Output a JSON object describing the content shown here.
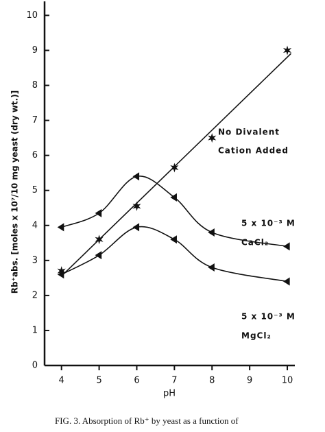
{
  "chart_data": {
    "type": "line",
    "x_label": "pH",
    "y_label": "Rb⁺abs. [moles x 10⁷/10 mg yeast (dry wt.)]",
    "caption": "FIG. 3.  Absorption of Rb⁺ by yeast as a function of",
    "annotations": [
      "No Divalent",
      "Cation Added",
      "5 x 10⁻³ M",
      "CaCl₂",
      "5 x 10⁻³ M",
      "MgCl₂"
    ],
    "xlim": [
      3.55,
      10.2
    ],
    "ylim": [
      0,
      10.4
    ],
    "xticks": [
      4,
      5,
      6,
      7,
      8,
      9,
      10
    ],
    "yticks": [
      0,
      1,
      2,
      3,
      4,
      5,
      6,
      7,
      8,
      9,
      10
    ],
    "series": [
      {
        "name": "No Divalent Cation Added",
        "color": "#111111",
        "marker": "star",
        "curve": "linear-fit",
        "x": [
          4,
          5,
          6,
          7,
          8,
          10
        ],
        "values": [
          2.7,
          3.6,
          4.55,
          5.65,
          6.5,
          9.0
        ]
      },
      {
        "name": "5 x 10⁻³ M CaCl₂",
        "color": "#111111",
        "marker": "triangle-left",
        "curve": "smooth",
        "x": [
          4,
          5,
          6,
          7,
          8,
          10
        ],
        "values": [
          3.95,
          4.35,
          5.4,
          4.8,
          3.8,
          3.4
        ]
      },
      {
        "name": "5 x 10⁻³ M MgCl₂",
        "color": "#111111",
        "marker": "triangle-left",
        "curve": "smooth",
        "x": [
          4,
          5,
          6,
          7,
          8,
          10
        ],
        "values": [
          2.6,
          3.15,
          3.95,
          3.6,
          2.8,
          2.4
        ]
      }
    ]
  }
}
